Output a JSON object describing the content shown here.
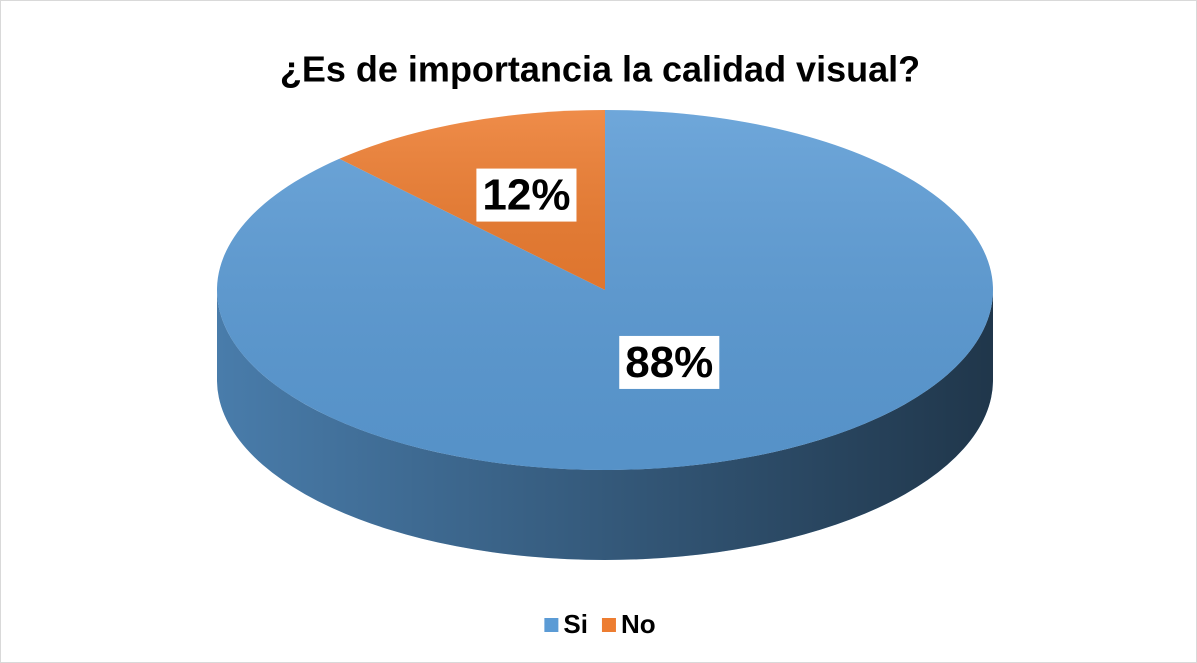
{
  "chart_data": {
    "type": "pie",
    "title": "¿Es de importancia la calidad visual?",
    "categories": [
      "Si",
      "No"
    ],
    "values": [
      88,
      12
    ],
    "value_labels": [
      "88%",
      "12%"
    ],
    "colors": [
      "#5b9bd5",
      "#ed7d31"
    ],
    "legend": "bottom"
  }
}
